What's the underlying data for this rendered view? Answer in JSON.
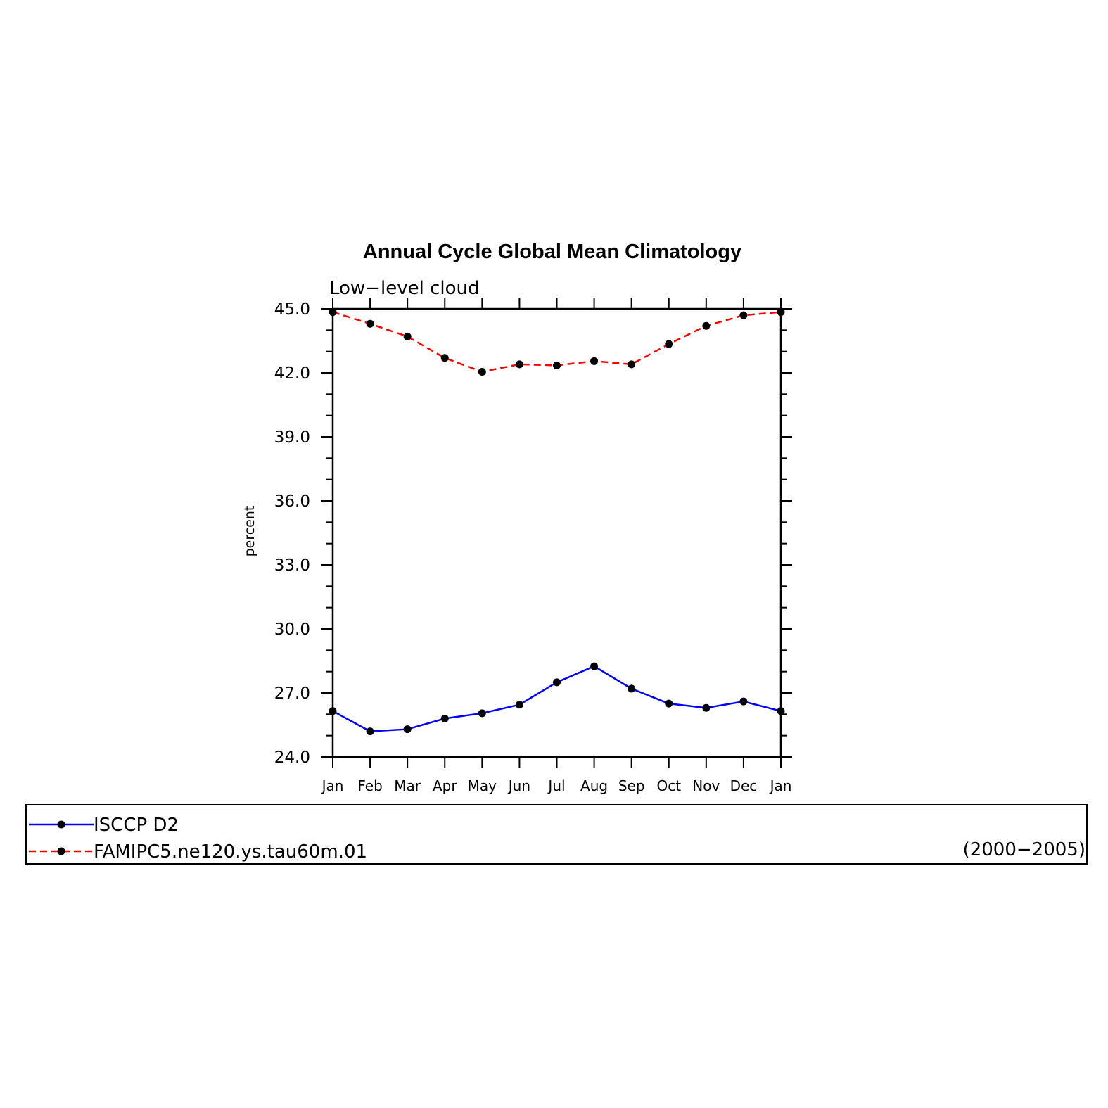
{
  "chart_data": {
    "type": "line",
    "title": "Annual Cycle Global Mean Climatology",
    "subtitle": "Low−level cloud",
    "xlabel": "",
    "ylabel": "percent",
    "categories": [
      "Jan",
      "Feb",
      "Mar",
      "Apr",
      "May",
      "Jun",
      "Jul",
      "Aug",
      "Sep",
      "Oct",
      "Nov",
      "Dec",
      "Jan"
    ],
    "ylim": [
      24.0,
      45.0
    ],
    "yticks": [
      "24.0",
      "27.0",
      "30.0",
      "33.0",
      "36.0",
      "39.0",
      "42.0",
      "45.0"
    ],
    "series": [
      {
        "name": "ISCCP D2",
        "color": "#0000ff",
        "line_style": "solid",
        "values": [
          26.15,
          25.2,
          25.3,
          25.8,
          26.05,
          26.45,
          27.5,
          28.25,
          27.2,
          26.5,
          26.3,
          26.6,
          26.15
        ]
      },
      {
        "name": "FAMIPC5.ne120.ys.tau60m.01",
        "color": "#ff0000",
        "line_style": "dashed",
        "values": [
          44.85,
          44.3,
          43.7,
          42.7,
          42.05,
          42.4,
          42.35,
          42.55,
          42.4,
          43.35,
          44.2,
          44.7,
          44.85
        ]
      }
    ],
    "legend_note": "(2000−2005)",
    "legend_position": "bottom",
    "grid": false
  }
}
